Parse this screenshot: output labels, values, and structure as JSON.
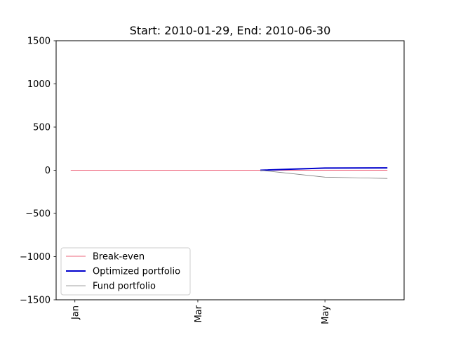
{
  "chart_data": {
    "type": "line",
    "title": "Start: 2010-01-29, End: 2010-06-30",
    "xlabel": "",
    "ylabel": "",
    "xlim": [
      "2010-01-22",
      "2010-07-08"
    ],
    "ylim": [
      -1500,
      1500
    ],
    "y_ticks": [
      -1500,
      -1000,
      -500,
      0,
      500,
      1000,
      1500
    ],
    "x_ticks": [
      {
        "date": "2010-01-31",
        "label": "Jan"
      },
      {
        "date": "2010-03-31",
        "label": "Mar"
      },
      {
        "date": "2010-05-31",
        "label": "May"
      }
    ],
    "grid": false,
    "legend": "lower-left",
    "series": [
      {
        "name": "Break-even",
        "color": "#e8314f",
        "style": "thin",
        "points": [
          {
            "x": "2010-01-29",
            "y": 0
          },
          {
            "x": "2010-06-30",
            "y": 0
          }
        ]
      },
      {
        "name": "Optimized portfolio",
        "color": "#0000cc",
        "style": "thick",
        "points": [
          {
            "x": "2010-04-30",
            "y": 0
          },
          {
            "x": "2010-05-31",
            "y": 25
          },
          {
            "x": "2010-06-30",
            "y": 28
          }
        ]
      },
      {
        "name": "Fund portfolio",
        "color": "#808080",
        "style": "thin",
        "points": [
          {
            "x": "2010-04-30",
            "y": 0
          },
          {
            "x": "2010-05-31",
            "y": -80
          },
          {
            "x": "2010-06-30",
            "y": -95
          }
        ]
      }
    ]
  }
}
